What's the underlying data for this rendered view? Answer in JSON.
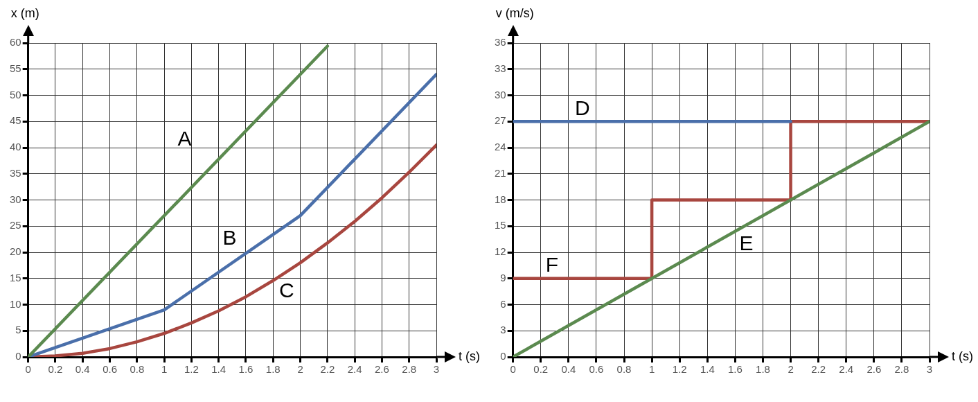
{
  "chart_data": [
    {
      "type": "line",
      "xlabel": "t (s)",
      "ylabel": "x (m)",
      "xlim": [
        0,
        3
      ],
      "ylim": [
        0,
        60
      ],
      "xticks": [
        0,
        0.2,
        0.4,
        0.6,
        0.8,
        1,
        1.2,
        1.4,
        1.6,
        1.8,
        2,
        2.2,
        2.4,
        2.6,
        2.8,
        3
      ],
      "yticks": [
        0,
        5,
        10,
        15,
        20,
        25,
        30,
        35,
        40,
        45,
        50,
        55,
        60
      ],
      "grid": true,
      "series": [
        {
          "name": "A",
          "color": "#5b8a4f",
          "x": [
            0,
            2.2
          ],
          "values": [
            0,
            59.4
          ]
        },
        {
          "name": "B",
          "color": "#4a6faa",
          "x": [
            0,
            1,
            2,
            3
          ],
          "values": [
            0,
            9,
            27,
            54
          ]
        },
        {
          "name": "C",
          "color": "#a8463f",
          "x": [
            0,
            0.2,
            0.4,
            0.6,
            0.8,
            1,
            1.2,
            1.4,
            1.6,
            1.8,
            2,
            2.2,
            2.4,
            2.6,
            2.8,
            3
          ],
          "values": [
            0,
            0.2,
            0.7,
            1.6,
            2.9,
            4.5,
            6.5,
            8.8,
            11.5,
            14.6,
            18,
            21.8,
            25.9,
            30.4,
            35.3,
            40.5
          ]
        }
      ]
    },
    {
      "type": "line",
      "xlabel": "t (s)",
      "ylabel": "v (m/s)",
      "xlim": [
        0,
        3
      ],
      "ylim": [
        0,
        36
      ],
      "xticks": [
        0,
        0.2,
        0.4,
        0.6,
        0.8,
        1,
        1.2,
        1.4,
        1.6,
        1.8,
        2,
        2.2,
        2.4,
        2.6,
        2.8,
        3
      ],
      "yticks": [
        0,
        3,
        6,
        9,
        12,
        15,
        18,
        21,
        24,
        27,
        30,
        33,
        36
      ],
      "grid": true,
      "series": [
        {
          "name": "D",
          "color": "#4a6faa",
          "x": [
            0,
            2
          ],
          "values": [
            27,
            27
          ]
        },
        {
          "name": "E",
          "color": "#5b8a4f",
          "x": [
            0,
            3
          ],
          "values": [
            0,
            27
          ]
        },
        {
          "name": "F",
          "type": "step",
          "color": "#a8463f",
          "x": [
            0,
            1,
            2,
            3
          ],
          "values": [
            9,
            18,
            27,
            27
          ]
        }
      ]
    }
  ]
}
